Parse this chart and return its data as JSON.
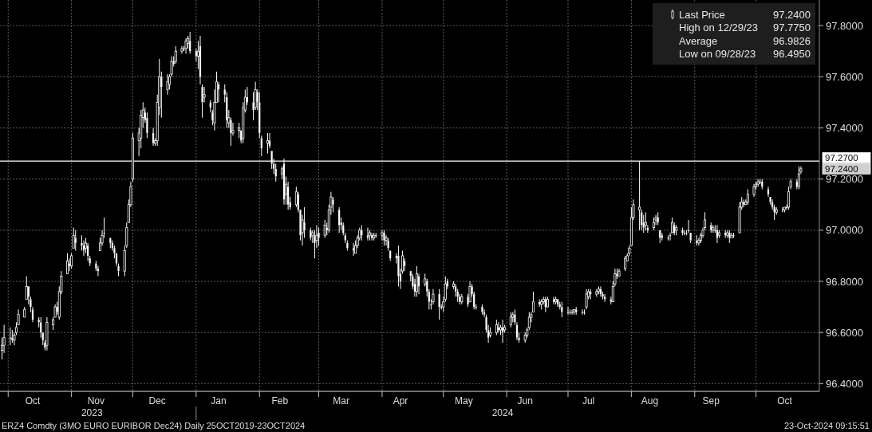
{
  "chart_data": {
    "type": "candlestick",
    "title": "ERZ4 Comdty (3MO EURO EURIBOR Dec24) Daily 25OCT2019-23OCT2024",
    "subtitle": "23-Oct-2024 09:15:51",
    "xlim": [
      "2023-09-27",
      "2024-11-01"
    ],
    "ylim": [
      96.37,
      97.9
    ],
    "xticks": [
      {
        "value": "2023-10-01",
        "label": null
      },
      {
        "value": "2023-10-13",
        "label": "Oct"
      },
      {
        "value": "2023-11-01",
        "label": null
      },
      {
        "value": "2023-11-13",
        "label": "Nov"
      },
      {
        "value": "2023-12-01",
        "label": null
      },
      {
        "value": "2023-12-13",
        "label": "Dec"
      },
      {
        "value": "2024-01-01",
        "label": null
      },
      {
        "value": "2024-01-12",
        "label": "Jan"
      },
      {
        "value": "2024-02-01",
        "label": null
      },
      {
        "value": "2024-02-11",
        "label": "Feb"
      },
      {
        "value": "2024-03-01",
        "label": null
      },
      {
        "value": "2024-03-12",
        "label": "Mar"
      },
      {
        "value": "2024-04-01",
        "label": null
      },
      {
        "value": "2024-04-10",
        "label": "Apr"
      },
      {
        "value": "2024-05-01",
        "label": null
      },
      {
        "value": "2024-05-11",
        "label": "May"
      },
      {
        "value": "2024-06-01",
        "label": null
      },
      {
        "value": "2024-06-10",
        "label": "Jun"
      },
      {
        "value": "2024-07-01",
        "label": null
      },
      {
        "value": "2024-07-11",
        "label": "Jul"
      },
      {
        "value": "2024-08-01",
        "label": null
      },
      {
        "value": "2024-08-10",
        "label": "Aug"
      },
      {
        "value": "2024-09-01",
        "label": null
      },
      {
        "value": "2024-09-09",
        "label": "Sep"
      },
      {
        "value": "2024-10-01",
        "label": null
      },
      {
        "value": "2024-10-15",
        "label": "Oct"
      }
    ],
    "x2lim": [
      "2023-09-27",
      "2024-11-01"
    ],
    "x2ticks": [
      {
        "value": "2023-11-11",
        "label": "2023"
      },
      {
        "value": "2024-01-01",
        "label": null
      },
      {
        "value": "2024-05-30",
        "label": "2024"
      }
    ],
    "yticks": [
      {
        "value": 96.4,
        "label": "96.4000"
      },
      {
        "value": 96.6,
        "label": "96.6000"
      },
      {
        "value": 96.8,
        "label": "96.8000"
      },
      {
        "value": 97.0,
        "label": "97.0000"
      },
      {
        "value": 97.2,
        "label": "97.2000"
      },
      {
        "value": 97.4,
        "label": "97.4000"
      },
      {
        "value": 97.6,
        "label": "97.6000"
      },
      {
        "value": 97.8,
        "label": "97.8000"
      }
    ],
    "grid": true,
    "legend": "top right",
    "ref_lines": [
      {
        "axis": "y",
        "value": 97.27,
        "label": "97.2700",
        "color": "#ffffff"
      }
    ],
    "annotations": [
      "High on 12/29/23 97.7750",
      "Average 96.9826",
      "Low on 09/28/23 96.4950",
      {
        "text": "97.2400",
        "x": "2024-10-23",
        "y": 97.24
      }
    ],
    "series": [
      {
        "name": "Last Price",
        "color": "#ffffff",
        "x": [
          "2023-09-28",
          "2023-09-29",
          "2023-10-02",
          "2023-10-03",
          "2023-10-04",
          "2023-10-05",
          "2023-10-06",
          "2023-10-09",
          "2023-10-10",
          "2023-10-11",
          "2023-10-12",
          "2023-10-13",
          "2023-10-16",
          "2023-10-17",
          "2023-10-18",
          "2023-10-19",
          "2023-10-20",
          "2023-10-23",
          "2023-10-24",
          "2023-10-25",
          "2023-10-26",
          "2023-10-27",
          "2023-10-30",
          "2023-10-31",
          "2023-11-01",
          "2023-11-02",
          "2023-11-03",
          "2023-11-06",
          "2023-11-07",
          "2023-11-08",
          "2023-11-09",
          "2023-11-10",
          "2023-11-13",
          "2023-11-14",
          "2023-11-15",
          "2023-11-16",
          "2023-11-17",
          "2023-11-20",
          "2023-11-21",
          "2023-11-22",
          "2023-11-23",
          "2023-11-24",
          "2023-11-27",
          "2023-11-28",
          "2023-11-29",
          "2023-11-30",
          "2023-12-01",
          "2023-12-04",
          "2023-12-05",
          "2023-12-06",
          "2023-12-07",
          "2023-12-08",
          "2023-12-11",
          "2023-12-12",
          "2023-12-13",
          "2023-12-14",
          "2023-12-15",
          "2023-12-18",
          "2023-12-19",
          "2023-12-20",
          "2023-12-21",
          "2023-12-22",
          "2023-12-25",
          "2023-12-26",
          "2023-12-27",
          "2023-12-28",
          "2023-12-29",
          "2024-01-01",
          "2024-01-02",
          "2024-01-03",
          "2024-01-04",
          "2024-01-05",
          "2024-01-08",
          "2024-01-09",
          "2024-01-10",
          "2024-01-11",
          "2024-01-12",
          "2024-01-15",
          "2024-01-16",
          "2024-01-17",
          "2024-01-18",
          "2024-01-19",
          "2024-01-22",
          "2024-01-23",
          "2024-01-24",
          "2024-01-25",
          "2024-01-26",
          "2024-01-29",
          "2024-01-30",
          "2024-01-31",
          "2024-02-01",
          "2024-02-02",
          "2024-02-05",
          "2024-02-06",
          "2024-02-07",
          "2024-02-08",
          "2024-02-09",
          "2024-02-12",
          "2024-02-13",
          "2024-02-14",
          "2024-02-15",
          "2024-02-16",
          "2024-02-19",
          "2024-02-20",
          "2024-02-21",
          "2024-02-22",
          "2024-02-23",
          "2024-02-26",
          "2024-02-27",
          "2024-02-28",
          "2024-02-29",
          "2024-03-01",
          "2024-03-04",
          "2024-03-05",
          "2024-03-06",
          "2024-03-07",
          "2024-03-08",
          "2024-03-11",
          "2024-03-12",
          "2024-03-13",
          "2024-03-14",
          "2024-03-15",
          "2024-03-18",
          "2024-03-19",
          "2024-03-20",
          "2024-03-21",
          "2024-03-22",
          "2024-03-25",
          "2024-03-26",
          "2024-03-27",
          "2024-03-28",
          "2024-03-29",
          "2024-04-01",
          "2024-04-02",
          "2024-04-03",
          "2024-04-04",
          "2024-04-05",
          "2024-04-08",
          "2024-04-09",
          "2024-04-10",
          "2024-04-11",
          "2024-04-12",
          "2024-04-15",
          "2024-04-16",
          "2024-04-17",
          "2024-04-18",
          "2024-04-19",
          "2024-04-22",
          "2024-04-23",
          "2024-04-24",
          "2024-04-25",
          "2024-04-26",
          "2024-04-29",
          "2024-04-30",
          "2024-05-01",
          "2024-05-02",
          "2024-05-03",
          "2024-05-06",
          "2024-05-07",
          "2024-05-08",
          "2024-05-09",
          "2024-05-10",
          "2024-05-13",
          "2024-05-14",
          "2024-05-15",
          "2024-05-16",
          "2024-05-17",
          "2024-05-20",
          "2024-05-21",
          "2024-05-22",
          "2024-05-23",
          "2024-05-24",
          "2024-05-27",
          "2024-05-28",
          "2024-05-29",
          "2024-05-30",
          "2024-05-31",
          "2024-06-03",
          "2024-06-04",
          "2024-06-05",
          "2024-06-06",
          "2024-06-07",
          "2024-06-10",
          "2024-06-11",
          "2024-06-12",
          "2024-06-13",
          "2024-06-14",
          "2024-06-17",
          "2024-06-18",
          "2024-06-19",
          "2024-06-20",
          "2024-06-21",
          "2024-06-24",
          "2024-06-25",
          "2024-06-26",
          "2024-06-27",
          "2024-06-28",
          "2024-07-01",
          "2024-07-02",
          "2024-07-03",
          "2024-07-04",
          "2024-07-05",
          "2024-07-08",
          "2024-07-09",
          "2024-07-10",
          "2024-07-11",
          "2024-07-12",
          "2024-07-15",
          "2024-07-16",
          "2024-07-17",
          "2024-07-18",
          "2024-07-19",
          "2024-07-22",
          "2024-07-23",
          "2024-07-24",
          "2024-07-25",
          "2024-07-26",
          "2024-07-29",
          "2024-07-30",
          "2024-07-31",
          "2024-08-01",
          "2024-08-02",
          "2024-08-05",
          "2024-08-06",
          "2024-08-07",
          "2024-08-08",
          "2024-08-09",
          "2024-08-12",
          "2024-08-13",
          "2024-08-14",
          "2024-08-15",
          "2024-08-16",
          "2024-08-19",
          "2024-08-20",
          "2024-08-21",
          "2024-08-22",
          "2024-08-23",
          "2024-08-26",
          "2024-08-27",
          "2024-08-28",
          "2024-08-29",
          "2024-08-30",
          "2024-09-02",
          "2024-09-03",
          "2024-09-04",
          "2024-09-05",
          "2024-09-06",
          "2024-09-09",
          "2024-09-10",
          "2024-09-11",
          "2024-09-12",
          "2024-09-13",
          "2024-09-16",
          "2024-09-17",
          "2024-09-18",
          "2024-09-19",
          "2024-09-20",
          "2024-09-23",
          "2024-09-24",
          "2024-09-25",
          "2024-09-26",
          "2024-09-27",
          "2024-09-30",
          "2024-10-01",
          "2024-10-02",
          "2024-10-03",
          "2024-10-04",
          "2024-10-07",
          "2024-10-08",
          "2024-10-09",
          "2024-10-10",
          "2024-10-11",
          "2024-10-14",
          "2024-10-15",
          "2024-10-16",
          "2024-10-17",
          "2024-10-18",
          "2024-10-21",
          "2024-10-22",
          "2024-10-23"
        ],
        "ohlc": [
          [
            96.53,
            96.58,
            96.495,
            96.55
          ],
          [
            96.55,
            96.63,
            96.52,
            96.58
          ],
          [
            96.58,
            96.62,
            96.55,
            96.58
          ],
          [
            96.58,
            96.61,
            96.56,
            96.57
          ],
          [
            96.57,
            96.6,
            96.55,
            96.59
          ],
          [
            96.6,
            96.64,
            96.59,
            96.62
          ],
          [
            96.63,
            96.69,
            96.63,
            96.67
          ],
          [
            96.66,
            96.7,
            96.66,
            96.69
          ],
          [
            96.73,
            96.82,
            96.73,
            96.78
          ],
          [
            96.78,
            96.78,
            96.71,
            96.74
          ],
          [
            96.73,
            96.74,
            96.68,
            96.7
          ],
          [
            96.69,
            96.7,
            96.64,
            96.65
          ],
          [
            96.65,
            96.66,
            96.62,
            96.64
          ],
          [
            96.64,
            96.66,
            96.58,
            96.6
          ],
          [
            96.6,
            96.6,
            96.55,
            96.57
          ],
          [
            96.56,
            96.57,
            96.53,
            96.54
          ],
          [
            96.55,
            96.66,
            96.53,
            96.64
          ],
          [
            96.63,
            96.66,
            96.61,
            96.65
          ],
          [
            96.66,
            96.71,
            96.66,
            96.7
          ],
          [
            96.7,
            96.72,
            96.67,
            96.68
          ],
          [
            96.66,
            96.78,
            96.65,
            96.76
          ],
          [
            96.76,
            96.84,
            96.75,
            96.82
          ],
          [
            96.83,
            96.91,
            96.83,
            96.88
          ],
          [
            96.87,
            96.89,
            96.84,
            96.86
          ],
          [
            96.86,
            96.91,
            96.85,
            96.9
          ],
          [
            96.93,
            97.01,
            96.93,
            96.98
          ],
          [
            96.97,
            97.0,
            96.92,
            96.95
          ],
          [
            96.95,
            96.98,
            96.92,
            96.94
          ],
          [
            96.94,
            96.96,
            96.9,
            96.92
          ],
          [
            96.93,
            96.97,
            96.91,
            96.95
          ],
          [
            96.94,
            96.95,
            96.88,
            96.9
          ],
          [
            96.89,
            96.9,
            96.86,
            96.87
          ],
          [
            96.87,
            96.88,
            96.84,
            96.85
          ],
          [
            96.85,
            96.86,
            96.82,
            96.84
          ],
          [
            96.92,
            96.97,
            96.92,
            96.95
          ],
          [
            96.95,
            97.0,
            96.94,
            96.98
          ],
          [
            96.99,
            97.05,
            96.97,
            96.99
          ],
          [
            96.97,
            96.97,
            96.93,
            96.95
          ],
          [
            96.95,
            96.96,
            96.92,
            96.93
          ],
          [
            96.93,
            96.94,
            96.89,
            96.91
          ],
          [
            96.91,
            96.91,
            96.86,
            96.87
          ],
          [
            96.86,
            96.87,
            96.82,
            96.84
          ],
          [
            96.84,
            96.94,
            96.82,
            96.92
          ],
          [
            96.94,
            97.03,
            96.93,
            97.01
          ],
          [
            97.03,
            97.12,
            97.03,
            97.1
          ],
          [
            97.1,
            97.19,
            97.09,
            97.17
          ],
          [
            97.2,
            97.38,
            97.19,
            97.36
          ],
          [
            97.35,
            97.4,
            97.29,
            97.38
          ],
          [
            97.36,
            97.47,
            97.32,
            97.45
          ],
          [
            97.44,
            97.5,
            97.4,
            97.47
          ],
          [
            97.46,
            97.48,
            97.42,
            97.43
          ],
          [
            97.44,
            97.46,
            97.36,
            97.38
          ],
          [
            97.38,
            97.4,
            97.33,
            97.34
          ],
          [
            97.34,
            97.36,
            97.33,
            97.35
          ],
          [
            97.35,
            97.53,
            97.33,
            97.5
          ],
          [
            97.48,
            97.67,
            97.45,
            97.6
          ],
          [
            97.6,
            97.62,
            97.44,
            97.56
          ],
          [
            97.55,
            97.61,
            97.53,
            97.58
          ],
          [
            97.57,
            97.61,
            97.55,
            97.6
          ],
          [
            97.61,
            97.68,
            97.6,
            97.66
          ],
          [
            97.66,
            97.68,
            97.64,
            97.65
          ],
          [
            97.66,
            97.72,
            97.65,
            97.7
          ],
          [
            97.7,
            97.72,
            97.69,
            97.71
          ],
          [
            97.71,
            97.72,
            97.7,
            97.71
          ],
          [
            97.71,
            97.75,
            97.69,
            97.74
          ],
          [
            97.73,
            97.76,
            97.71,
            97.75
          ],
          [
            97.74,
            97.775,
            97.69,
            97.7
          ],
          [
            97.7,
            97.71,
            97.66,
            97.68
          ],
          [
            97.68,
            97.74,
            97.63,
            97.7
          ],
          [
            97.72,
            97.76,
            97.57,
            97.6
          ],
          [
            97.56,
            97.57,
            97.44,
            97.5
          ],
          [
            97.52,
            97.56,
            97.5,
            97.53
          ],
          [
            97.5,
            97.51,
            97.46,
            97.48
          ],
          [
            97.46,
            97.47,
            97.41,
            97.43
          ],
          [
            97.42,
            97.55,
            97.39,
            97.5
          ],
          [
            97.5,
            97.62,
            97.5,
            97.58
          ],
          [
            97.57,
            97.58,
            97.5,
            97.55
          ],
          [
            97.55,
            97.57,
            97.5,
            97.53
          ],
          [
            97.52,
            97.54,
            97.4,
            97.43
          ],
          [
            97.42,
            97.47,
            97.4,
            97.44
          ],
          [
            97.43,
            97.44,
            97.33,
            97.38
          ],
          [
            97.38,
            97.42,
            97.37,
            97.39
          ],
          [
            97.39,
            97.42,
            97.36,
            97.4
          ],
          [
            97.39,
            97.39,
            97.34,
            97.35
          ],
          [
            97.36,
            97.5,
            97.34,
            97.48
          ],
          [
            97.47,
            97.55,
            97.46,
            97.52
          ],
          [
            97.52,
            97.56,
            97.49,
            97.5
          ],
          [
            97.5,
            97.54,
            97.43,
            97.47
          ],
          [
            97.48,
            97.58,
            97.47,
            97.55
          ],
          [
            97.54,
            97.55,
            97.47,
            97.5
          ],
          [
            97.5,
            97.54,
            97.36,
            97.38
          ],
          [
            97.36,
            97.37,
            97.29,
            97.32
          ],
          [
            97.34,
            97.38,
            97.3,
            97.35
          ],
          [
            97.35,
            97.38,
            97.32,
            97.33
          ],
          [
            97.31,
            97.31,
            97.24,
            97.26
          ],
          [
            97.26,
            97.28,
            97.22,
            97.24
          ],
          [
            97.24,
            97.26,
            97.19,
            97.21
          ],
          [
            97.22,
            97.25,
            97.2,
            97.24
          ],
          [
            97.26,
            97.28,
            97.1,
            97.12
          ],
          [
            97.14,
            97.21,
            97.1,
            97.18
          ],
          [
            97.17,
            97.19,
            97.08,
            97.1
          ],
          [
            97.11,
            97.13,
            97.08,
            97.09
          ],
          [
            97.1,
            97.17,
            97.09,
            97.15
          ],
          [
            97.14,
            97.15,
            97.07,
            97.08
          ],
          [
            97.08,
            97.08,
            96.96,
            96.98
          ],
          [
            96.99,
            97.06,
            96.94,
            97.04
          ],
          [
            97.03,
            97.09,
            96.97,
            97.0
          ],
          [
            97.0,
            97.01,
            96.96,
            96.97
          ],
          [
            96.98,
            97.0,
            96.95,
            96.99
          ],
          [
            96.98,
            97.0,
            96.89,
            96.95
          ],
          [
            96.96,
            97.02,
            96.93,
            96.98
          ],
          [
            96.99,
            97.01,
            96.94,
            96.97
          ],
          [
            96.98,
            97.04,
            96.97,
            97.02
          ],
          [
            97.01,
            97.03,
            96.98,
            97.0
          ],
          [
            97.0,
            97.1,
            96.99,
            97.08
          ],
          [
            97.09,
            97.15,
            97.06,
            97.13
          ],
          [
            97.12,
            97.13,
            97.07,
            97.1
          ],
          [
            97.08,
            97.09,
            96.99,
            97.02
          ],
          [
            97.03,
            97.05,
            97.0,
            97.02
          ],
          [
            97.02,
            97.03,
            96.98,
            96.99
          ],
          [
            96.98,
            96.99,
            96.95,
            96.96
          ],
          [
            96.95,
            96.96,
            96.92,
            96.93
          ],
          [
            96.93,
            96.95,
            96.9,
            96.92
          ],
          [
            96.91,
            96.96,
            96.91,
            96.94
          ],
          [
            96.94,
            96.98,
            96.93,
            96.97
          ],
          [
            96.97,
            97.01,
            96.96,
            97.0
          ],
          [
            97.0,
            97.02,
            96.96,
            96.98
          ],
          [
            96.98,
            97.01,
            96.96,
            96.97
          ],
          [
            96.98,
            97.0,
            96.96,
            96.99
          ],
          [
            96.98,
            96.99,
            96.96,
            96.97
          ],
          [
            96.97,
            96.99,
            96.96,
            96.98
          ],
          [
            96.98,
            96.99,
            96.97,
            96.98
          ],
          [
            96.98,
            97.0,
            96.96,
            96.99
          ],
          [
            96.99,
            97.0,
            96.94,
            96.96
          ],
          [
            96.96,
            96.98,
            96.94,
            96.97
          ],
          [
            96.96,
            96.97,
            96.92,
            96.93
          ],
          [
            96.92,
            96.92,
            96.88,
            96.89
          ],
          [
            96.9,
            96.91,
            96.87,
            96.89
          ],
          [
            96.9,
            96.94,
            96.78,
            96.82
          ],
          [
            96.83,
            96.85,
            96.77,
            96.8
          ],
          [
            96.84,
            96.92,
            96.83,
            96.9
          ],
          [
            96.88,
            96.89,
            96.84,
            96.86
          ],
          [
            96.84,
            96.84,
            96.8,
            96.82
          ],
          [
            96.82,
            96.83,
            96.77,
            96.78
          ],
          [
            96.79,
            96.81,
            96.74,
            96.76
          ],
          [
            96.76,
            96.86,
            96.74,
            96.83
          ],
          [
            96.82,
            96.83,
            96.75,
            96.78
          ],
          [
            96.79,
            96.83,
            96.78,
            96.81
          ],
          [
            96.8,
            96.81,
            96.74,
            96.76
          ],
          [
            96.76,
            96.77,
            96.69,
            96.72
          ],
          [
            96.71,
            96.73,
            96.69,
            96.71
          ],
          [
            96.72,
            96.77,
            96.71,
            96.75
          ],
          [
            96.75,
            96.77,
            96.65,
            96.7
          ],
          [
            96.7,
            96.71,
            96.69,
            96.7
          ],
          [
            96.7,
            96.74,
            96.68,
            96.72
          ],
          [
            96.73,
            96.82,
            96.72,
            96.79
          ],
          [
            96.8,
            96.81,
            96.77,
            96.78
          ],
          [
            96.78,
            96.8,
            96.77,
            96.79
          ],
          [
            96.78,
            96.79,
            96.74,
            96.76
          ],
          [
            96.76,
            96.77,
            96.72,
            96.74
          ],
          [
            96.74,
            96.75,
            96.71,
            96.72
          ],
          [
            96.72,
            96.75,
            96.71,
            96.74
          ],
          [
            96.74,
            96.75,
            96.7,
            96.71
          ],
          [
            96.72,
            96.8,
            96.72,
            96.78
          ],
          [
            96.78,
            96.79,
            96.74,
            96.75
          ],
          [
            96.75,
            96.76,
            96.69,
            96.7
          ],
          [
            96.7,
            96.71,
            96.69,
            96.7
          ],
          [
            96.7,
            96.71,
            96.67,
            96.68
          ],
          [
            96.68,
            96.69,
            96.66,
            96.67
          ],
          [
            96.66,
            96.67,
            96.6,
            96.61
          ],
          [
            96.61,
            96.63,
            96.56,
            96.58
          ],
          [
            96.59,
            96.62,
            96.58,
            96.6
          ],
          [
            96.6,
            96.65,
            96.59,
            96.63
          ],
          [
            96.62,
            96.64,
            96.6,
            96.61
          ],
          [
            96.61,
            96.63,
            96.59,
            96.62
          ],
          [
            96.62,
            96.65,
            96.56,
            96.6
          ],
          [
            96.61,
            96.63,
            96.6,
            96.62
          ],
          [
            96.63,
            96.68,
            96.62,
            96.66
          ],
          [
            96.66,
            96.68,
            96.64,
            96.67
          ],
          [
            96.67,
            96.69,
            96.63,
            96.64
          ],
          [
            96.63,
            96.64,
            96.57,
            96.58
          ],
          [
            96.58,
            96.6,
            96.56,
            96.57
          ],
          [
            96.57,
            96.6,
            96.56,
            96.59
          ],
          [
            96.59,
            96.62,
            96.58,
            96.61
          ],
          [
            96.62,
            96.68,
            96.61,
            96.66
          ],
          [
            96.66,
            96.68,
            96.64,
            96.67
          ],
          [
            96.68,
            96.76,
            96.68,
            96.72
          ],
          [
            96.72,
            96.73,
            96.7,
            96.71
          ],
          [
            96.71,
            96.73,
            96.69,
            96.72
          ],
          [
            96.72,
            96.74,
            96.71,
            96.73
          ],
          [
            96.73,
            96.74,
            96.68,
            96.7
          ],
          [
            96.7,
            96.74,
            96.7,
            96.73
          ],
          [
            96.73,
            96.74,
            96.71,
            96.72
          ],
          [
            96.72,
            96.74,
            96.71,
            96.73
          ],
          [
            96.73,
            96.73,
            96.7,
            96.71
          ],
          [
            96.71,
            96.72,
            96.69,
            96.7
          ],
          [
            96.7,
            96.72,
            96.66,
            96.68
          ],
          [
            96.68,
            96.7,
            96.67,
            96.68
          ],
          [
            96.68,
            96.69,
            96.67,
            96.68
          ],
          [
            96.68,
            96.69,
            96.67,
            96.68
          ],
          [
            96.68,
            96.69,
            96.67,
            96.69
          ],
          [
            96.69,
            96.7,
            96.67,
            96.68
          ],
          [
            96.68,
            96.69,
            96.67,
            96.68
          ],
          [
            96.68,
            96.69,
            96.67,
            96.68
          ],
          [
            96.7,
            96.77,
            96.69,
            96.75
          ],
          [
            96.74,
            96.77,
            96.73,
            96.76
          ],
          [
            96.76,
            96.77,
            96.73,
            96.75
          ],
          [
            96.75,
            96.77,
            96.74,
            96.76
          ],
          [
            96.76,
            96.78,
            96.75,
            96.77
          ],
          [
            96.77,
            96.78,
            96.74,
            96.75
          ],
          [
            96.75,
            96.76,
            96.73,
            96.74
          ],
          [
            96.74,
            96.75,
            96.72,
            96.73
          ],
          [
            96.73,
            96.74,
            96.71,
            96.72
          ],
          [
            96.72,
            96.8,
            96.72,
            96.78
          ],
          [
            96.79,
            96.85,
            96.78,
            96.83
          ],
          [
            96.83,
            96.85,
            96.81,
            96.82
          ],
          [
            96.82,
            96.85,
            96.82,
            96.84
          ],
          [
            96.85,
            96.9,
            96.84,
            96.89
          ],
          [
            96.88,
            96.91,
            96.88,
            96.9
          ],
          [
            96.91,
            96.94,
            96.9,
            96.93
          ],
          [
            96.94,
            97.09,
            96.94,
            97.05
          ],
          [
            97.05,
            97.12,
            97.04,
            97.1
          ],
          [
            97.08,
            97.27,
            97.0,
            97.09
          ],
          [
            97.07,
            97.08,
            97.0,
            97.02
          ],
          [
            97.03,
            97.06,
            96.99,
            97.01
          ],
          [
            97.02,
            97.07,
            97.0,
            97.03
          ],
          [
            97.01,
            97.02,
            96.99,
            97.0
          ],
          [
            97.01,
            97.05,
            97.0,
            97.03
          ],
          [
            97.04,
            97.06,
            97.02,
            97.05
          ],
          [
            97.05,
            97.07,
            97.02,
            97.03
          ],
          [
            97.0,
            97.0,
            96.95,
            96.97
          ],
          [
            96.98,
            96.99,
            96.96,
            96.97
          ],
          [
            96.97,
            96.98,
            96.96,
            96.97
          ],
          [
            96.98,
            96.99,
            96.96,
            96.98
          ],
          [
            96.99,
            97.05,
            96.99,
            97.03
          ],
          [
            97.02,
            97.03,
            96.98,
            96.99
          ],
          [
            97.0,
            97.02,
            96.98,
            97.01
          ],
          [
            97.0,
            97.01,
            96.98,
            96.99
          ],
          [
            96.99,
            97.0,
            96.98,
            96.99
          ],
          [
            96.99,
            97.0,
            96.98,
            96.99
          ],
          [
            97.0,
            97.04,
            96.99,
            97.0
          ],
          [
            96.99,
            96.99,
            96.95,
            96.96
          ],
          [
            96.96,
            96.98,
            96.94,
            96.95
          ],
          [
            96.95,
            96.97,
            96.94,
            96.96
          ],
          [
            96.96,
            96.99,
            96.95,
            96.98
          ],
          [
            96.98,
            97.01,
            96.97,
            97.0
          ],
          [
            97.01,
            97.07,
            97.0,
            97.04
          ],
          [
            97.02,
            97.03,
            96.99,
            97.0
          ],
          [
            97.0,
            97.02,
            96.99,
            97.01
          ],
          [
            97.0,
            97.02,
            96.99,
            97.0
          ],
          [
            97.0,
            97.02,
            96.95,
            96.97
          ],
          [
            96.98,
            97.0,
            96.97,
            96.99
          ],
          [
            96.99,
            97.0,
            96.97,
            96.98
          ],
          [
            96.98,
            97.0,
            96.97,
            96.99
          ],
          [
            96.99,
            97.0,
            96.95,
            96.97
          ],
          [
            96.97,
            96.99,
            96.97,
            96.98
          ],
          [
            96.98,
            96.99,
            96.97,
            96.98
          ],
          [
            96.99,
            97.11,
            96.99,
            97.09
          ],
          [
            97.09,
            97.13,
            97.08,
            97.11
          ],
          [
            97.11,
            97.12,
            97.09,
            97.1
          ],
          [
            97.1,
            97.12,
            97.1,
            97.11
          ],
          [
            97.11,
            97.16,
            97.1,
            97.14
          ],
          [
            97.14,
            97.18,
            97.13,
            97.17
          ],
          [
            97.17,
            97.19,
            97.16,
            97.18
          ],
          [
            97.18,
            97.2,
            97.17,
            97.19
          ],
          [
            97.19,
            97.2,
            97.18,
            97.19
          ],
          [
            97.19,
            97.2,
            97.16,
            97.17
          ],
          [
            97.16,
            97.17,
            97.13,
            97.14
          ],
          [
            97.13,
            97.13,
            97.1,
            97.11
          ],
          [
            97.11,
            97.12,
            97.08,
            97.09
          ],
          [
            97.09,
            97.1,
            97.04,
            97.07
          ],
          [
            97.07,
            97.09,
            97.06,
            97.08
          ],
          [
            97.08,
            97.09,
            97.07,
            97.08
          ],
          [
            97.08,
            97.09,
            97.07,
            97.09
          ],
          [
            97.09,
            97.1,
            97.08,
            97.09
          ],
          [
            97.09,
            97.17,
            97.08,
            97.15
          ],
          [
            97.17,
            97.2,
            97.16,
            97.19
          ],
          [
            97.19,
            97.2,
            97.16,
            97.17
          ],
          [
            97.17,
            97.25,
            97.16,
            97.22
          ],
          [
            97.23,
            97.25,
            97.22,
            97.24
          ]
        ]
      }
    ]
  }
}
